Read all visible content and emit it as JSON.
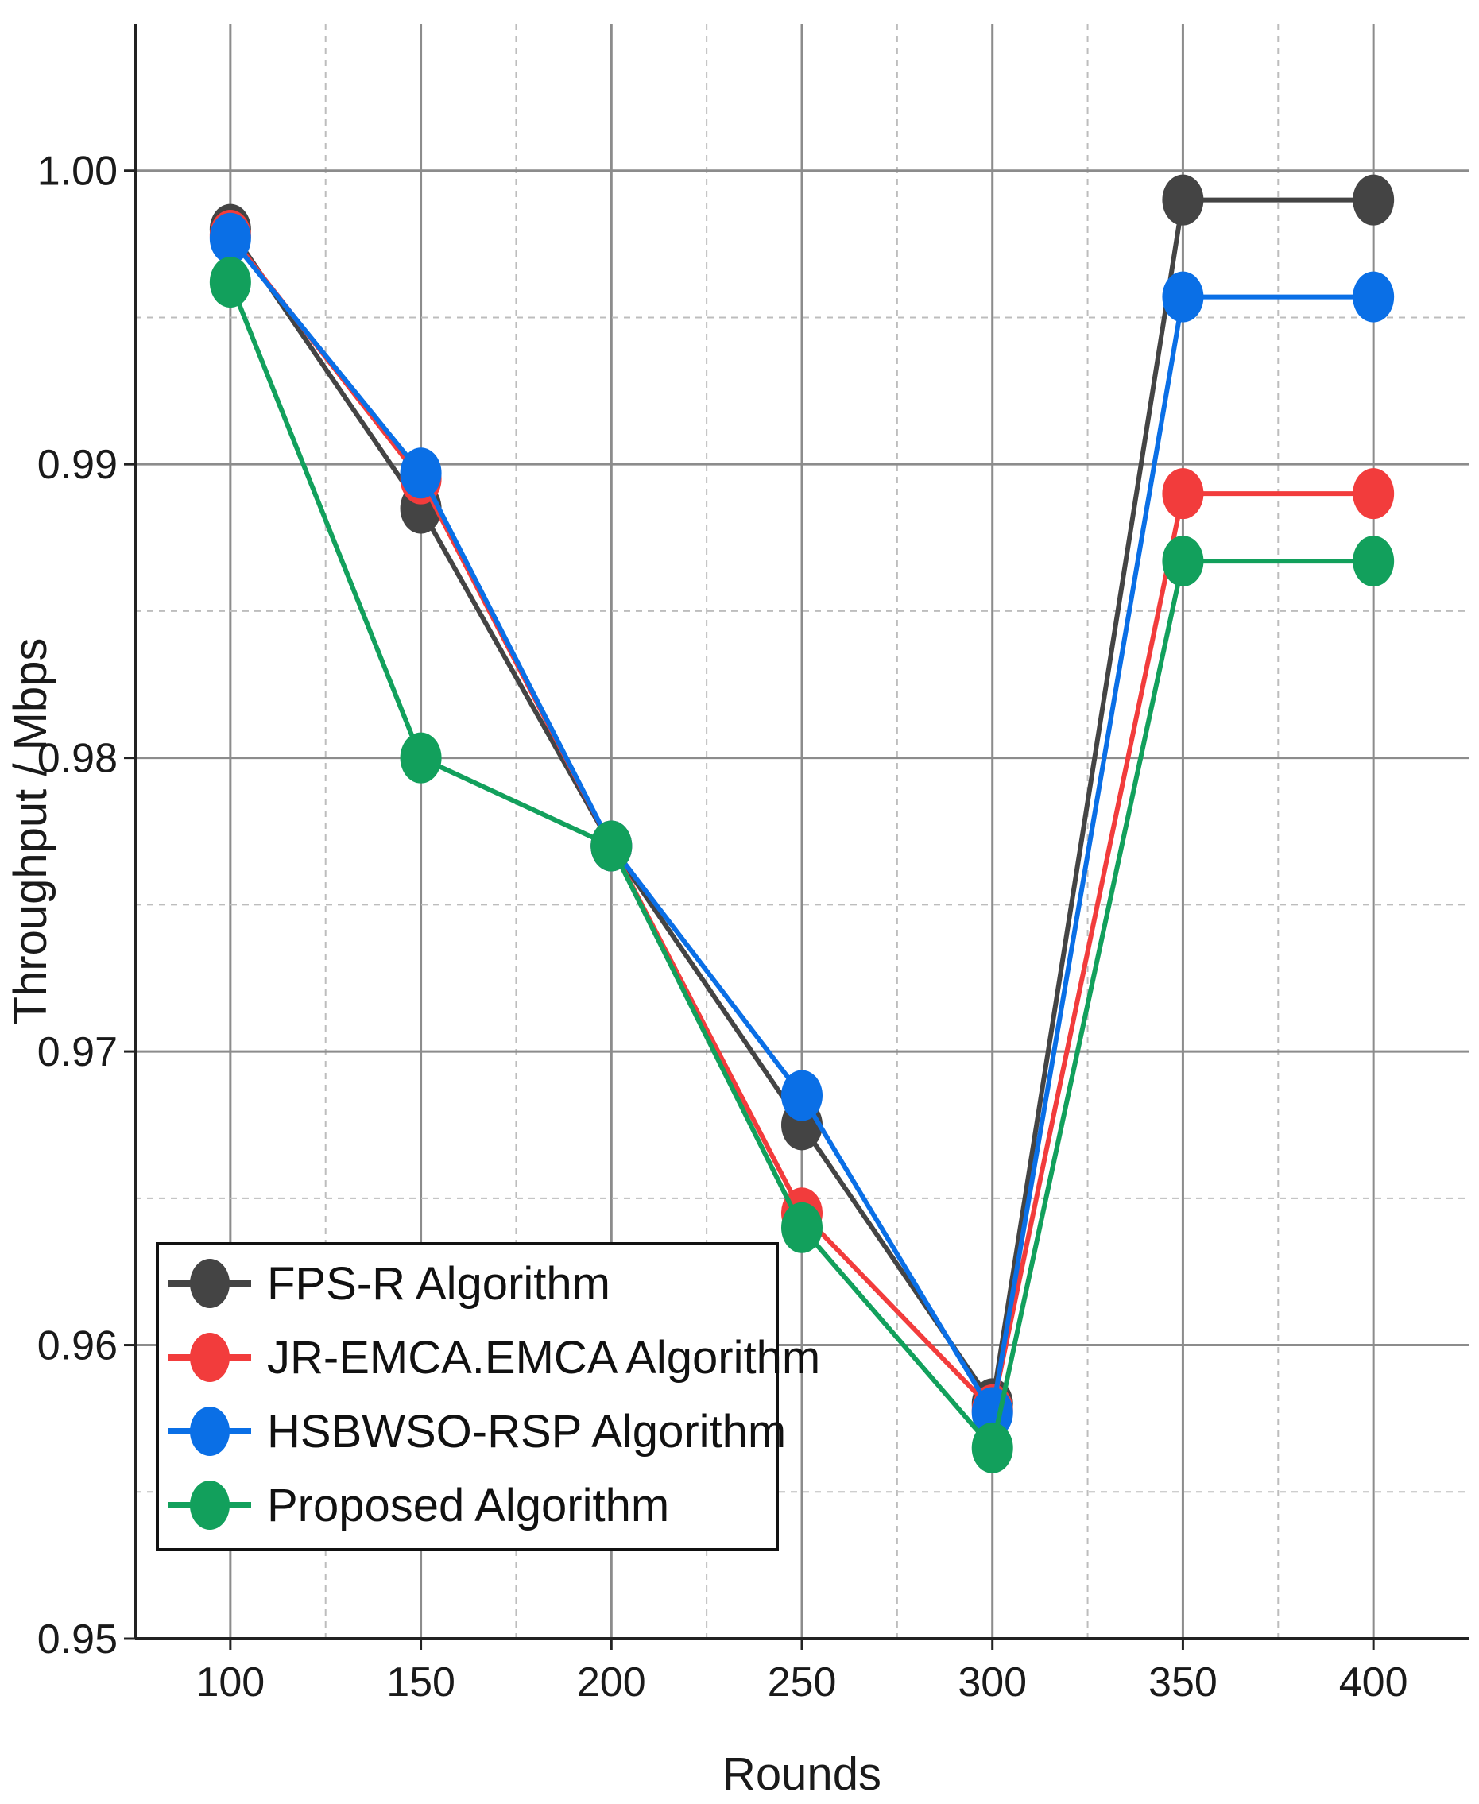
{
  "chart_data": {
    "type": "line",
    "title": "",
    "xlabel": "Rounds",
    "ylabel": "Throughput / Mbps",
    "x": [
      100,
      150,
      200,
      250,
      300,
      350,
      400
    ],
    "xticks": [
      "100",
      "150",
      "200",
      "250",
      "300",
      "350",
      "400"
    ],
    "xlim": [
      75,
      425
    ],
    "ylim": [
      0.95,
      1.005
    ],
    "yticks": [
      {
        "value": 0.95,
        "label": "0.95"
      },
      {
        "value": 0.96,
        "label": "0.96"
      },
      {
        "value": 0.97,
        "label": "0.97"
      },
      {
        "value": 0.98,
        "label": "0.98"
      },
      {
        "value": 0.99,
        "label": "0.99"
      },
      {
        "value": 1.0,
        "label": "1.00"
      }
    ],
    "grid": true,
    "legend_position": "bottom-left",
    "series": [
      {
        "name": "FPS-R Algorithm",
        "color": "#444444",
        "values": [
          0.998,
          0.9885,
          0.977,
          0.9675,
          0.958,
          0.999,
          0.999
        ]
      },
      {
        "name": "JR-EMCA.EMCA Algorithm",
        "color": "#f23c3c",
        "values": [
          0.9978,
          0.9895,
          0.977,
          0.9645,
          0.9578,
          0.989,
          0.989
        ]
      },
      {
        "name": "HSBWSO-RSP Algorithm",
        "color": "#0a6fe6",
        "values": [
          0.9977,
          0.9897,
          0.977,
          0.9685,
          0.9577,
          0.9957,
          0.9957
        ]
      },
      {
        "name": "Proposed Algorithm",
        "color": "#12a05c",
        "values": [
          0.9962,
          0.98,
          0.977,
          0.964,
          0.9565,
          0.9867,
          0.9867
        ]
      }
    ]
  }
}
